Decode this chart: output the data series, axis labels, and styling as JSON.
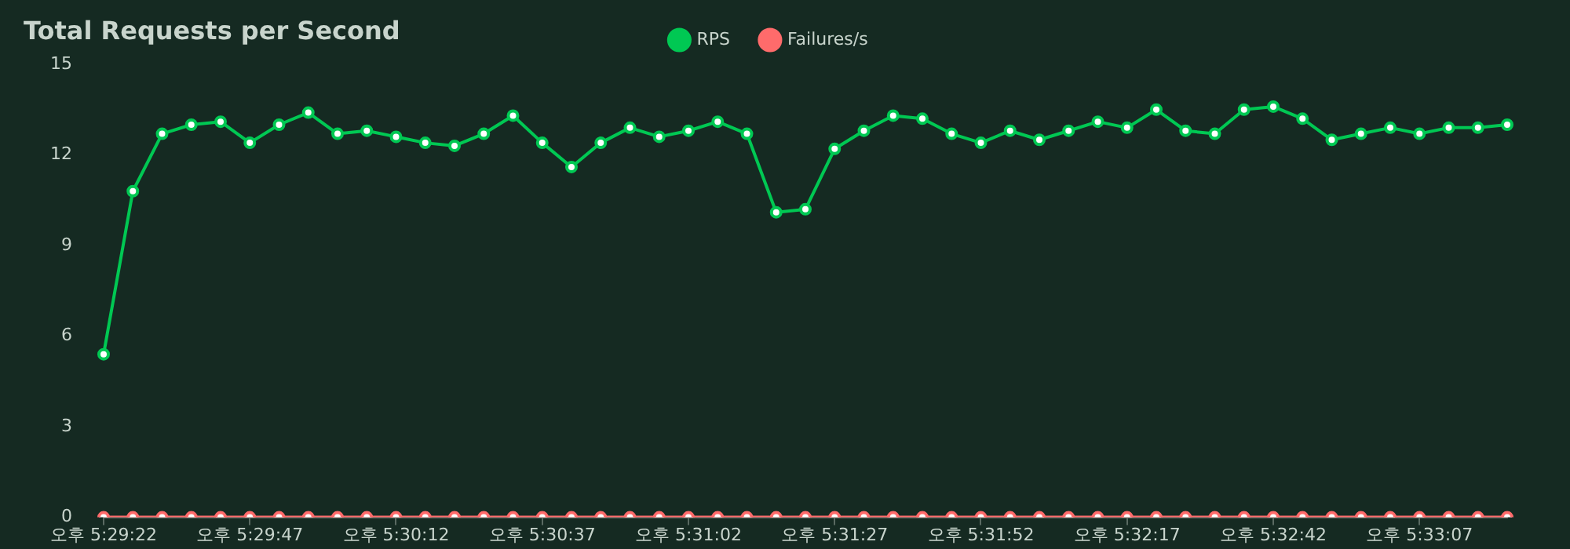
{
  "chart_data": {
    "type": "line",
    "title": "Total Requests per Second",
    "categories": [
      "오후 5:29:22",
      null,
      null,
      null,
      null,
      "오후 5:29:47",
      null,
      null,
      null,
      null,
      "오후 5:30:12",
      null,
      null,
      null,
      null,
      "오후 5:30:37",
      null,
      null,
      null,
      null,
      "오후 5:31:02",
      null,
      null,
      null,
      null,
      "오후 5:31:27",
      null,
      null,
      null,
      null,
      "오후 5:31:52",
      null,
      null,
      null,
      null,
      "오후 5:32:17",
      null,
      null,
      null,
      null,
      "오후 5:32:42",
      null,
      null,
      null,
      null,
      "오후 5:33:07",
      null,
      null,
      null
    ],
    "series": [
      {
        "name": "RPS",
        "color": "#00c853",
        "values": [
          5.4,
          10.8,
          12.7,
          13.0,
          13.1,
          12.4,
          13.0,
          13.4,
          12.7,
          12.8,
          12.6,
          12.4,
          12.3,
          12.7,
          13.3,
          12.4,
          11.6,
          12.4,
          12.9,
          12.6,
          12.8,
          13.1,
          12.7,
          10.1,
          10.2,
          12.2,
          12.8,
          13.3,
          13.2,
          12.7,
          12.4,
          12.8,
          12.5,
          12.8,
          13.1,
          12.9,
          13.5,
          12.8,
          12.7,
          13.5,
          13.6,
          13.2,
          12.5,
          12.7,
          12.9,
          12.7,
          12.9,
          12.9,
          13.0
        ]
      },
      {
        "name": "Failures/s",
        "color": "#ff6b6b",
        "values": [
          0,
          0,
          0,
          0,
          0,
          0,
          0,
          0,
          0,
          0,
          0,
          0,
          0,
          0,
          0,
          0,
          0,
          0,
          0,
          0,
          0,
          0,
          0,
          0,
          0,
          0,
          0,
          0,
          0,
          0,
          0,
          0,
          0,
          0,
          0,
          0,
          0,
          0,
          0,
          0,
          0,
          0,
          0,
          0,
          0,
          0,
          0,
          0,
          0
        ]
      }
    ],
    "ylim": [
      0,
      15
    ],
    "yticks": [
      0,
      3,
      6,
      9,
      12,
      15
    ],
    "grid": false,
    "legend": "top",
    "marker": "circle",
    "line_style": "solid"
  }
}
